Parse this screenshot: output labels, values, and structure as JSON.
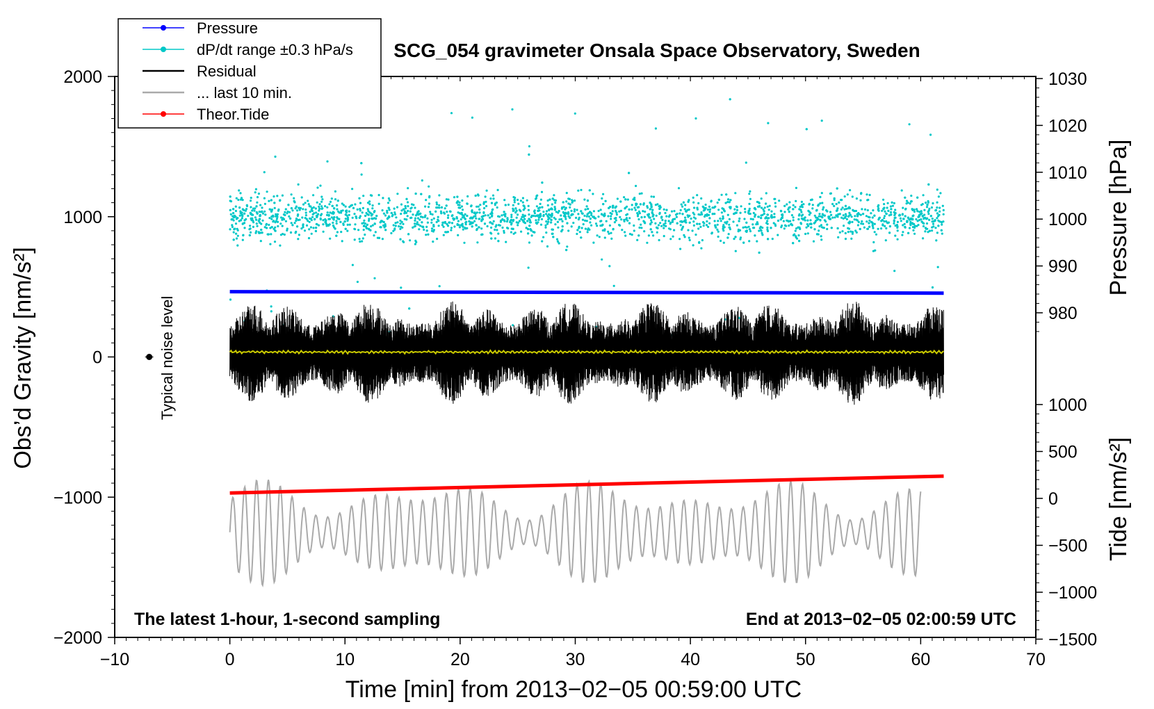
{
  "chart_data": {
    "type": "line",
    "title": "SCG_054 gravimeter Onsala Space Observatory, Sweden",
    "xlabel": "Time [min] from 2013−02−05 00:59:00 UTC",
    "ylabel_left": "Obs’d Gravity [nm/s²]",
    "ylabel_right_top": "Pressure [hPa]",
    "ylabel_right_bottom": "Tide [nm/s²]",
    "xlim": [
      -10,
      70
    ],
    "ylim_left": [
      -2000,
      2000
    ],
    "xticks": [
      "−10",
      "0",
      "10",
      "20",
      "30",
      "40",
      "50",
      "60",
      "70"
    ],
    "yticks_left": [
      "2000",
      "1000",
      "0",
      "−1000",
      "−2000"
    ],
    "yticks_pressure": [
      "1030",
      "1020",
      "1010",
      "1000",
      "990",
      "980"
    ],
    "yticks_tide": [
      "1000",
      "500",
      "0",
      "−500",
      "−1000",
      "−1500"
    ],
    "annotations": {
      "bottom_left": "The latest 1-hour, 1-second sampling",
      "bottom_right": "End at 2013−02−05 02:00:59 UTC",
      "noise": "Typical noise level"
    },
    "legend": [
      {
        "label": "Pressure",
        "color": "#0000ff",
        "marker": true
      },
      {
        "label": "dP/dt range ±0.3 hPa/s",
        "color": "#00c8c8",
        "marker": true
      },
      {
        "label": "Residual",
        "color": "#000000",
        "marker": false
      },
      {
        "label": "... last 10 min.",
        "color": "#aaaaaa",
        "marker": false
      },
      {
        "label": "Theor.Tide",
        "color": "#ff0000",
        "marker": true
      }
    ],
    "series": [
      {
        "name": "Pressure",
        "axis": "left",
        "color": "#0000ff",
        "x": [
          0,
          62
        ],
        "y": [
          465,
          455
        ]
      },
      {
        "name": "dP/dt range ±0.3 hPa/s",
        "axis": "left",
        "color": "#00c8c8",
        "center": 1000,
        "spread": 250,
        "x_range": [
          0,
          62
        ]
      },
      {
        "name": "Residual",
        "axis": "left",
        "color": "#000000",
        "center": 30,
        "amplitude_range": [
          100,
          600
        ],
        "x_range": [
          0,
          62
        ]
      },
      {
        "name": "Residual mean",
        "axis": "left",
        "color": "#cccc00",
        "x": [
          0,
          62
        ],
        "y": [
          35,
          35
        ]
      },
      {
        "name": "... last 10 min.",
        "axis": "left",
        "color": "#aaaaaa",
        "center": -1250,
        "amplitude_range": [
          80,
          380
        ],
        "x_range": [
          0,
          60
        ]
      },
      {
        "name": "Theor.Tide",
        "axis": "left",
        "color": "#ff0000",
        "x": [
          0,
          62
        ],
        "y": [
          -970,
          -850
        ]
      },
      {
        "name": "Typical noise level",
        "axis": "left",
        "color": "#000000",
        "x": [
          -7
        ],
        "y": [
          0
        ]
      }
    ]
  }
}
